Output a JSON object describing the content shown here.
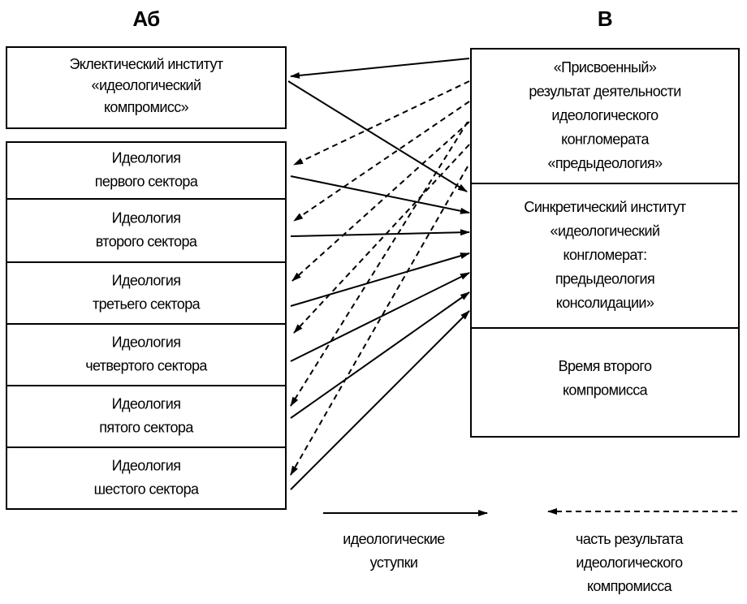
{
  "headers": {
    "left": "Аб",
    "right": "В"
  },
  "left_top": {
    "lines": [
      "Эклектический институт",
      "«идеологический",
      "компромисс»"
    ]
  },
  "left_boxes": [
    {
      "lines": [
        "Идеология",
        "первого сектора"
      ]
    },
    {
      "lines": [
        "Идеология",
        "второго сектора"
      ]
    },
    {
      "lines": [
        "Идеология",
        "третьего сектора"
      ]
    },
    {
      "lines": [
        "Идеология",
        "четвертого сектора"
      ]
    },
    {
      "lines": [
        "Идеология",
        "пятого сектора"
      ]
    },
    {
      "lines": [
        "Идеология",
        "шестого сектора"
      ]
    }
  ],
  "right_sections": [
    {
      "lines": [
        "«Присвоенный»",
        "результат деятельности",
        "идеологического",
        "конгломерата",
        "«предыдеология»"
      ]
    },
    {
      "lines": [
        "Синкретический институт",
        "«идеологический",
        "конгломерат:",
        "предыдеология",
        "консолидации»"
      ]
    },
    {
      "lines": [
        "Время второго",
        "компромисса"
      ]
    }
  ],
  "legend": {
    "solid": {
      "lines": [
        "идеологические",
        "уступки"
      ]
    },
    "dashed": {
      "lines": [
        "часть результата",
        "идеологического",
        "компромисса"
      ]
    }
  }
}
